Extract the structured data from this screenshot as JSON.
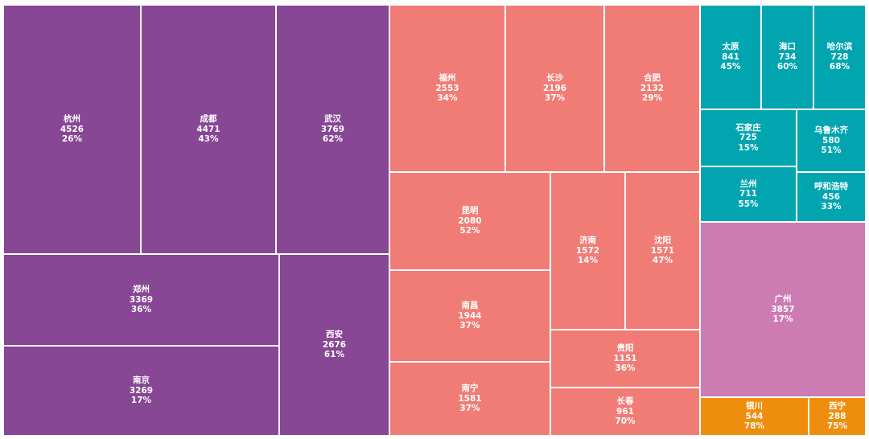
{
  "chart_data": {
    "type": "treemap",
    "title": "",
    "colors": {
      "purple": "#874795",
      "salmon": "#f17c76",
      "teal": "#00a5b0",
      "pink": "#cc7cb2",
      "orange": "#ef8e0e"
    },
    "groups": [
      {
        "color": "purple",
        "items": [
          {
            "name": "杭州",
            "value": 4526,
            "pct": "26%"
          },
          {
            "name": "成都",
            "value": 4471,
            "pct": "43%"
          },
          {
            "name": "武汉",
            "value": 3769,
            "pct": "62%"
          },
          {
            "name": "郑州",
            "value": 3369,
            "pct": "36%"
          },
          {
            "name": "南京",
            "value": 3269,
            "pct": "17%"
          },
          {
            "name": "西安",
            "value": 2676,
            "pct": "61%"
          }
        ]
      },
      {
        "color": "salmon",
        "items": [
          {
            "name": "福州",
            "value": 2553,
            "pct": "34%"
          },
          {
            "name": "长沙",
            "value": 2196,
            "pct": "37%"
          },
          {
            "name": "合肥",
            "value": 2132,
            "pct": "29%"
          },
          {
            "name": "昆明",
            "value": 2080,
            "pct": "52%"
          },
          {
            "name": "南昌",
            "value": 1944,
            "pct": "37%"
          },
          {
            "name": "南宁",
            "value": 1581,
            "pct": "37%"
          },
          {
            "name": "济南",
            "value": 1572,
            "pct": "14%"
          },
          {
            "name": "沈阳",
            "value": 1571,
            "pct": "47%"
          },
          {
            "name": "贵阳",
            "value": 1151,
            "pct": "36%"
          },
          {
            "name": "长春",
            "value": 961,
            "pct": "70%"
          }
        ]
      },
      {
        "color": "teal",
        "items": [
          {
            "name": "太原",
            "value": 841,
            "pct": "45%"
          },
          {
            "name": "海口",
            "value": 734,
            "pct": "60%"
          },
          {
            "name": "哈尔滨",
            "value": 728,
            "pct": "68%"
          },
          {
            "name": "石家庄",
            "value": 725,
            "pct": "15%"
          },
          {
            "name": "乌鲁木齐",
            "value": 580,
            "pct": "51%"
          },
          {
            "name": "兰州",
            "value": 711,
            "pct": "55%"
          },
          {
            "name": "呼和浩特",
            "value": 456,
            "pct": "33%"
          }
        ]
      },
      {
        "color": "pink",
        "items": [
          {
            "name": "广州",
            "value": 3857,
            "pct": "17%"
          }
        ]
      },
      {
        "color": "orange",
        "items": [
          {
            "name": "银川",
            "value": 544,
            "pct": "78%"
          },
          {
            "name": "西宁",
            "value": 288,
            "pct": "75%"
          }
        ]
      }
    ]
  }
}
